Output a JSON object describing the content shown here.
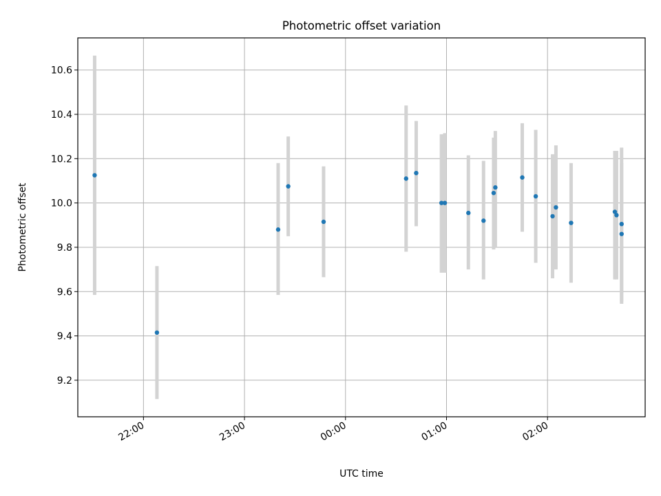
{
  "chart_data": {
    "type": "scatter",
    "title": "Photometric offset variation",
    "xlabel": "UTC time",
    "ylabel": "Photometric offset",
    "grid": true,
    "x_tick_labels": [
      "22:00",
      "23:00",
      "00:00",
      "01:00",
      "02:00"
    ],
    "y_tick_labels": [
      "9.2",
      "9.4",
      "9.6",
      "9.8",
      "10.0",
      "10.2",
      "10.4",
      "10.6"
    ],
    "xlim": [
      "21:21",
      "02:58"
    ],
    "ylim": [
      9.035,
      10.745
    ],
    "colors": {
      "points": "#1f77b4",
      "error_bars": "#d3d3d3",
      "grid": "#b0b0b0"
    },
    "points": [
      {
        "x": "21:31",
        "y": 10.125,
        "ylow": 9.585,
        "yhigh": 10.665
      },
      {
        "x": "22:08",
        "y": 9.415,
        "ylow": 9.115,
        "yhigh": 9.715
      },
      {
        "x": "23:20",
        "y": 9.88,
        "ylow": 9.585,
        "yhigh": 10.18
      },
      {
        "x": "23:26",
        "y": 10.075,
        "ylow": 9.85,
        "yhigh": 10.3
      },
      {
        "x": "23:47",
        "y": 9.915,
        "ylow": 9.665,
        "yhigh": 10.165
      },
      {
        "x": "00:36",
        "y": 10.11,
        "ylow": 9.78,
        "yhigh": 10.44
      },
      {
        "x": "00:42",
        "y": 10.135,
        "ylow": 9.895,
        "yhigh": 10.37
      },
      {
        "x": "00:57",
        "y": 10.0,
        "ylow": 9.685,
        "yhigh": 10.31
      },
      {
        "x": "00:59",
        "y": 10.0,
        "ylow": 9.685,
        "yhigh": 10.315
      },
      {
        "x": "01:13",
        "y": 9.955,
        "ylow": 9.7,
        "yhigh": 10.215
      },
      {
        "x": "01:22",
        "y": 9.92,
        "ylow": 9.655,
        "yhigh": 10.19
      },
      {
        "x": "01:28",
        "y": 10.045,
        "ylow": 9.79,
        "yhigh": 10.295
      },
      {
        "x": "01:29",
        "y": 10.07,
        "ylow": 9.8,
        "yhigh": 10.325
      },
      {
        "x": "01:45",
        "y": 10.115,
        "ylow": 9.87,
        "yhigh": 10.36
      },
      {
        "x": "01:53",
        "y": 10.03,
        "ylow": 9.73,
        "yhigh": 10.33
      },
      {
        "x": "02:03",
        "y": 9.94,
        "ylow": 9.66,
        "yhigh": 10.22
      },
      {
        "x": "02:05",
        "y": 9.98,
        "ylow": 9.7,
        "yhigh": 10.26
      },
      {
        "x": "02:14",
        "y": 9.91,
        "ylow": 9.64,
        "yhigh": 10.18
      },
      {
        "x": "02:40",
        "y": 9.96,
        "ylow": 9.655,
        "yhigh": 10.235
      },
      {
        "x": "02:41",
        "y": 9.945,
        "ylow": 9.655,
        "yhigh": 10.235
      },
      {
        "x": "02:44",
        "y": 9.86,
        "ylow": 9.545,
        "yhigh": 10.18
      },
      {
        "x": "02:44",
        "y": 9.905,
        "ylow": 9.555,
        "yhigh": 10.25
      }
    ]
  }
}
